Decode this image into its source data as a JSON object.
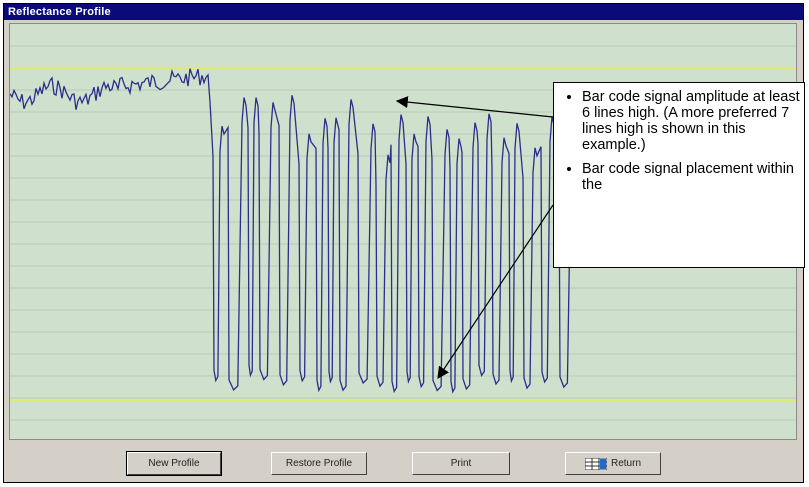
{
  "window": {
    "title": "Reflectance Profile"
  },
  "callout": {
    "items": [
      "Bar code signal amplitude at least 6 lines high.  (A more preferred 7 lines high is shown in this example.)",
      "Bar code signal placement within the"
    ]
  },
  "buttons": {
    "new_profile": "New Profile",
    "restore_profile": "Restore Profile",
    "print": "Print",
    "return": "Return"
  },
  "colors": {
    "plot_bg": "#cfe0cc",
    "signal": "#2b2e8a",
    "limit_line": "#e2ea6e",
    "title_bar": "#0a0a7a"
  },
  "chart_data": {
    "type": "line",
    "grid": true,
    "limit_lines": "two horizontal yellow reference lines above and below the signal",
    "series": [
      {
        "description": "reflectance waveform: noisy plateau then ~32 deep bar code bars"
      }
    ]
  }
}
